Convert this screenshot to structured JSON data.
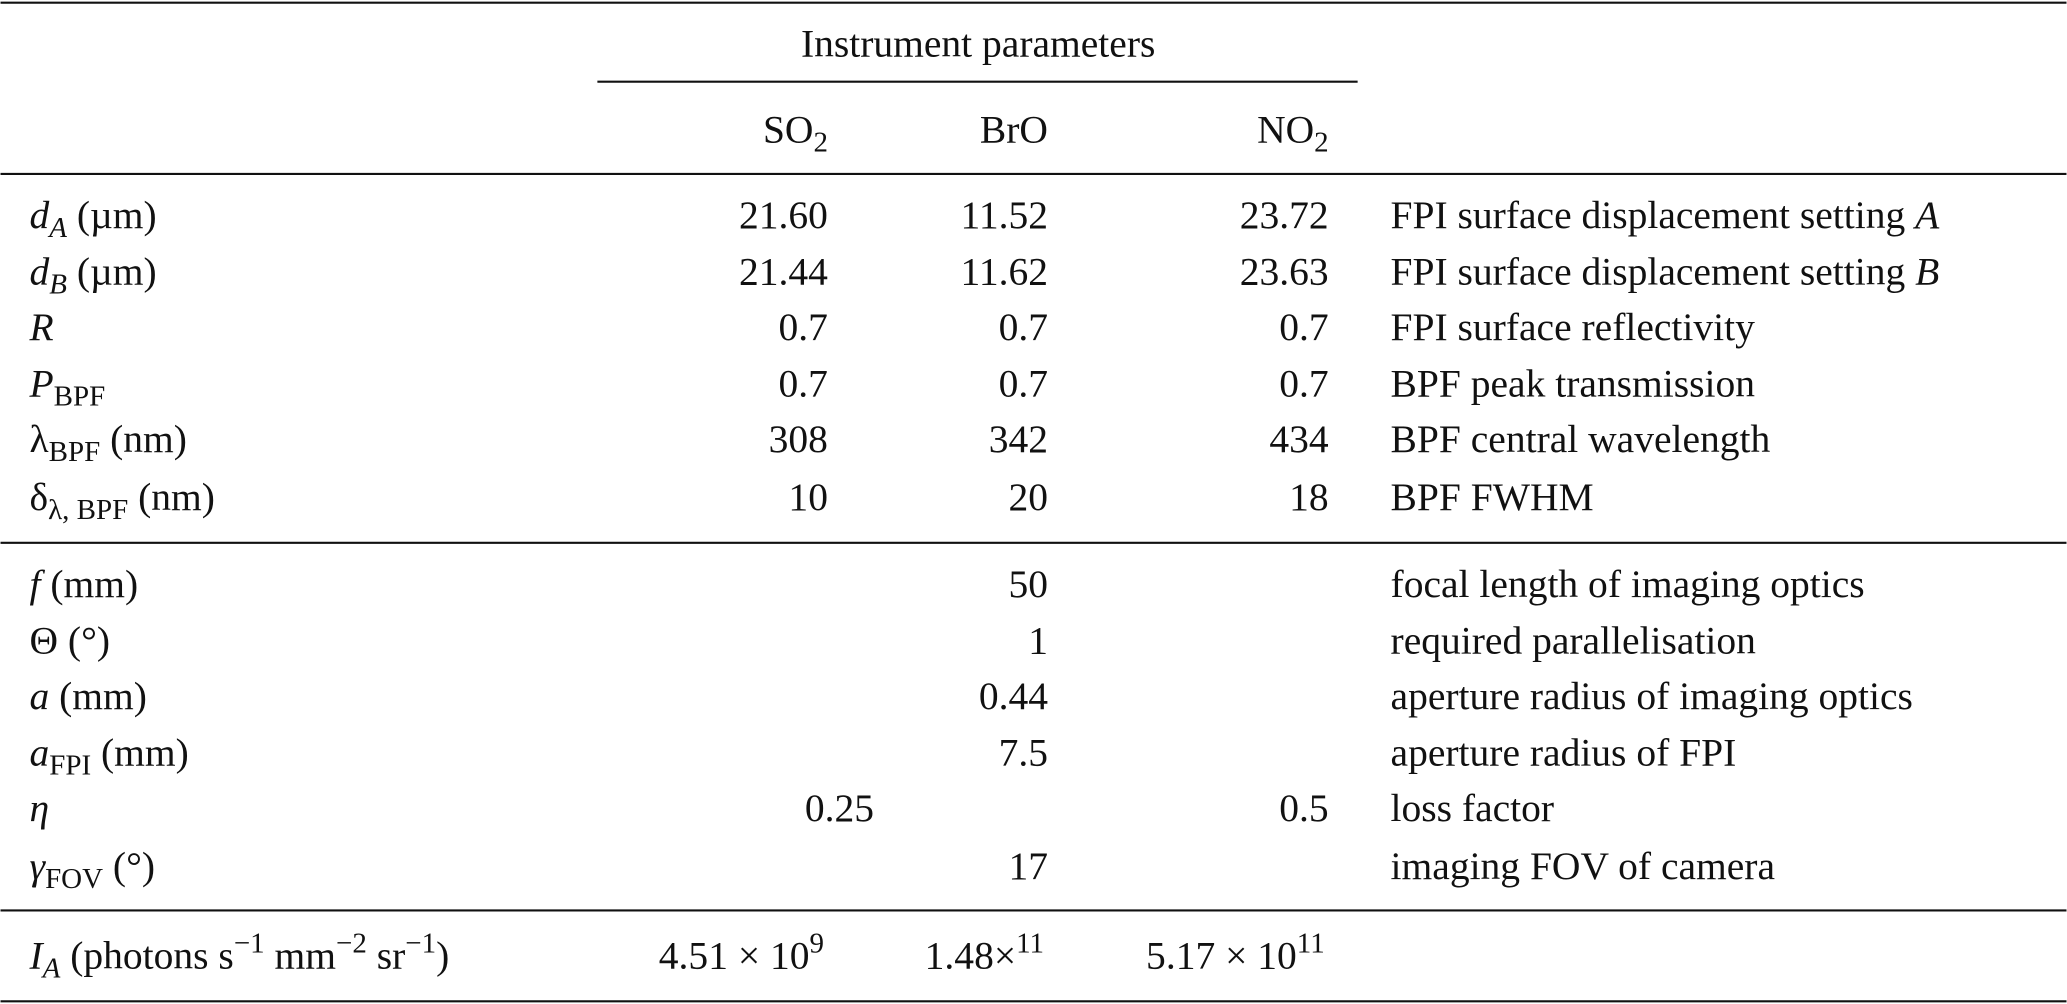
{
  "header": {
    "group_title": "Instrument parameters",
    "columns": [
      [
        {
          "text": "SO"
        },
        {
          "text": "2",
          "style": "sub"
        }
      ],
      [
        {
          "text": "BrO"
        }
      ],
      [
        {
          "text": "NO"
        },
        {
          "text": "2",
          "style": "sub"
        }
      ]
    ]
  },
  "sections": [
    [
      {
        "label": [
          {
            "text": "d",
            "style": "italic"
          },
          {
            "text": "A",
            "style": "italic-sub"
          },
          {
            "text": " (µm)"
          }
        ],
        "values": [
          "21.60",
          "11.52",
          "23.72"
        ],
        "description": [
          {
            "text": "FPI surface displacement setting "
          },
          {
            "text": "A",
            "style": "italic"
          }
        ]
      },
      {
        "label": [
          {
            "text": "d",
            "style": "italic"
          },
          {
            "text": "B",
            "style": "italic-sub"
          },
          {
            "text": " (µm)"
          }
        ],
        "values": [
          "21.44",
          "11.62",
          "23.63"
        ],
        "description": [
          {
            "text": "FPI surface displacement setting "
          },
          {
            "text": "B",
            "style": "italic"
          }
        ]
      },
      {
        "label": [
          {
            "text": "R",
            "style": "italic"
          }
        ],
        "values": [
          "0.7",
          "0.7",
          "0.7"
        ],
        "description": [
          {
            "text": "FPI surface reflectivity"
          }
        ]
      },
      {
        "label": [
          {
            "text": "P",
            "style": "italic"
          },
          {
            "text": "BPF",
            "style": "sub"
          }
        ],
        "values": [
          "0.7",
          "0.7",
          "0.7"
        ],
        "description": [
          {
            "text": "BPF peak transmission"
          }
        ]
      },
      {
        "label": [
          {
            "text": "λ"
          },
          {
            "text": "BPF",
            "style": "sub"
          },
          {
            "text": " (nm)"
          }
        ],
        "values": [
          "308",
          "342",
          "434"
        ],
        "description": [
          {
            "text": "BPF central wavelength"
          }
        ]
      },
      {
        "label": [
          {
            "text": "δ"
          },
          {
            "text": "λ, BPF",
            "style": "sub"
          },
          {
            "text": " (nm)"
          }
        ],
        "values": [
          "10",
          "20",
          "18"
        ],
        "description": [
          {
            "text": "BPF FWHM"
          }
        ]
      }
    ],
    [
      {
        "label": [
          {
            "text": "f",
            "style": "italic"
          },
          {
            "text": " (mm)"
          }
        ],
        "shared": "50",
        "description": [
          {
            "text": "focal length of imaging optics"
          }
        ]
      },
      {
        "label": [
          {
            "text": "Θ (°)"
          }
        ],
        "shared": "1",
        "description": [
          {
            "text": "required parallelisation"
          }
        ]
      },
      {
        "label": [
          {
            "text": "a",
            "style": "italic"
          },
          {
            "text": " (mm)"
          }
        ],
        "shared": "0.44",
        "description": [
          {
            "text": "aperture radius of imaging optics"
          }
        ]
      },
      {
        "label": [
          {
            "text": "a",
            "style": "italic"
          },
          {
            "text": "FPI",
            "style": "sub"
          },
          {
            "text": " (mm)"
          }
        ],
        "shared": "7.5",
        "description": [
          {
            "text": "aperture radius of FPI"
          }
        ]
      },
      {
        "label": [
          {
            "text": "η",
            "style": "italic"
          }
        ],
        "pair": [
          "0.25",
          "0.5"
        ],
        "description": [
          {
            "text": "loss factor"
          }
        ]
      },
      {
        "label": [
          {
            "text": "γ",
            "style": "italic"
          },
          {
            "text": "FOV",
            "style": "sub"
          },
          {
            "text": " (°)"
          }
        ],
        "shared": "17",
        "description": [
          {
            "text": "imaging FOV of camera"
          }
        ]
      }
    ],
    [
      {
        "label": [
          {
            "text": "I",
            "style": "italic"
          },
          {
            "text": "A",
            "style": "italic-sub"
          },
          {
            "text": " (photons s"
          },
          {
            "text": "−1",
            "style": "sup"
          },
          {
            "text": " mm"
          },
          {
            "text": "−2",
            "style": "sup"
          },
          {
            "text": " sr"
          },
          {
            "text": "−1",
            "style": "sup"
          },
          {
            "text": ")"
          }
        ],
        "values": [
          [
            {
              "text": "4.51 × 10"
            },
            {
              "text": "9",
              "style": "sup"
            }
          ],
          [
            {
              "text": "1.48×"
            },
            {
              "text": "11",
              "style": "sup"
            }
          ],
          [
            {
              "text": "5.17 × 10"
            },
            {
              "text": "11",
              "style": "sup"
            }
          ]
        ]
      }
    ]
  ]
}
